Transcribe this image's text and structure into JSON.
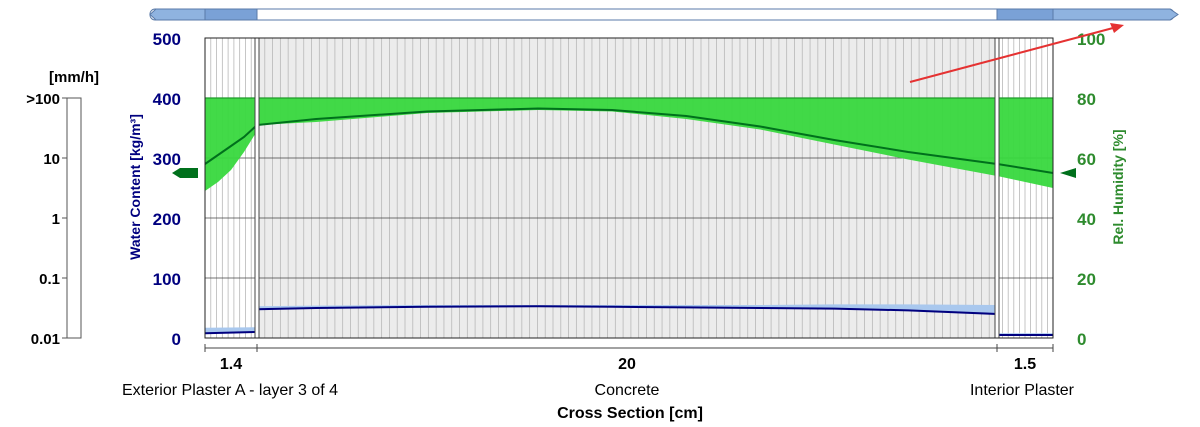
{
  "chart_data": [
    {
      "type": "bar",
      "title": "",
      "ylabel": "[mm/h]",
      "scale": "log",
      "ticks": [
        ">100",
        "10",
        "1",
        "0.1",
        "0.01"
      ],
      "tick_values": [
        100,
        10,
        1,
        0.1,
        0.01
      ],
      "values": []
    },
    {
      "type": "line",
      "title": "",
      "xlabel": "Cross Section [cm]",
      "ylabel_left": "Water Content [kg/m³]",
      "ylabel_right": "Rel. Humidity [%]",
      "ylim_left": [
        0,
        500
      ],
      "ylim_right": [
        0,
        100
      ],
      "left_ticks": [
        "0",
        "100",
        "200",
        "300",
        "400",
        "500"
      ],
      "right_ticks": [
        "0",
        "20",
        "40",
        "60",
        "80",
        "100"
      ],
      "x_unit": "cm",
      "layers": [
        {
          "thickness_label": "1.4",
          "name": "Exterior Plaster A  - layer 3 of 4",
          "thickness": 1.4
        },
        {
          "thickness_label": "20",
          "name": "Concrete",
          "thickness": 20
        },
        {
          "thickness_label": "1.5",
          "name": "Interior Plaster",
          "thickness": 1.5
        }
      ],
      "grid": true,
      "series": [
        {
          "role": "water-content",
          "axis": "left",
          "color": "#00007f",
          "x": [
            0,
            1.4,
            1.41,
            3,
            6,
            9,
            11,
            13,
            15,
            17,
            19,
            21.4,
            21.41,
            22.9
          ],
          "values": [
            8,
            10,
            48,
            50,
            52,
            53,
            52,
            51,
            50,
            49,
            46,
            40,
            5,
            5
          ]
        },
        {
          "role": "water-content-range-max",
          "axis": "left",
          "color": "#a9c8ee",
          "x": [
            0,
            1.4,
            1.41,
            3,
            6,
            9,
            11,
            13,
            15,
            17,
            19,
            21.4,
            21.41,
            22.9
          ],
          "values": [
            17,
            18,
            53,
            54,
            55,
            55,
            55,
            55,
            55,
            56,
            56,
            55,
            8,
            8
          ]
        },
        {
          "role": "relative-humidity",
          "axis": "right",
          "color": "#00701c",
          "x": [
            0,
            0.35,
            0.7,
            1.05,
            1.4,
            1.41,
            3,
            6,
            9,
            11,
            13,
            15,
            17,
            19,
            21.4,
            21.41,
            22.9
          ],
          "values": [
            58,
            61,
            64,
            67,
            71,
            71,
            73,
            75.5,
            76.5,
            76,
            74,
            70.5,
            66,
            62,
            58,
            58,
            55
          ]
        },
        {
          "role": "relative-humidity-range-max",
          "axis": "right",
          "color": "#38d83e",
          "x": [
            0,
            22.9
          ],
          "values": [
            80,
            80
          ]
        },
        {
          "role": "relative-humidity-range-min",
          "axis": "right",
          "color": "#38d83e",
          "x": [
            0,
            0.35,
            0.7,
            1.05,
            1.4,
            1.41,
            3,
            6,
            9,
            11,
            13,
            15,
            17,
            19,
            21.4,
            21.41,
            22.9
          ],
          "values": [
            49,
            52,
            56,
            62,
            69,
            71,
            72,
            75,
            76,
            75.5,
            73,
            69.5,
            64.5,
            59.5,
            54,
            54,
            50
          ]
        }
      ],
      "initial_marker_left": 275,
      "initial_marker_right": 55
    }
  ],
  "colors": {
    "water": "#00007f",
    "water_band": "#a9c8ee",
    "rh_line": "#00701c",
    "rh_band": "#38d83e",
    "axis_left_text": "#00007f",
    "axis_right_text": "#2e8b2e",
    "trend_arrow": "#e53232",
    "scroll_fill": "#8fb3e0"
  }
}
